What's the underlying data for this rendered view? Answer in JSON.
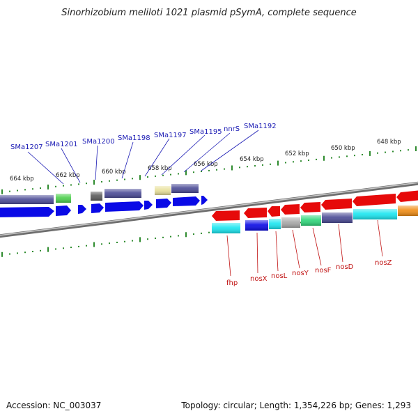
{
  "title": "Sinorhizobium meliloti 1021 plasmid pSymA, complete sequence",
  "footer": {
    "accession": "Accession: NC_003037",
    "summary": "Topology: circular; Length: 1,354,226 bp; Genes: 1,293"
  },
  "tick_labels": [
    "664 kbp",
    "662 kbp",
    "660 kbp",
    "658 kbp",
    "656 kbp",
    "654 kbp",
    "652 kbp",
    "650 kbp",
    "648 kbp"
  ],
  "top_gene_labels": [
    "SMa1207",
    "SMa1201",
    "SMa1200",
    "SMa1198",
    "SMa1197",
    "SMa1195",
    "nnrS",
    "SMa1192"
  ],
  "bottom_gene_labels": [
    "fhp",
    "nosX",
    "nosL",
    "nosY",
    "nosF",
    "nosD",
    "nosZ"
  ],
  "colors": {
    "backbone": "#8c8c8c",
    "tick": "#2e8b2e",
    "blue_label": "#1a1ab4",
    "red_label": "#c01010",
    "gene_forward": "#0a0ae6",
    "gene_reverse": "#e60a0a",
    "gene_cog_dark": "#4b4b96",
    "gene_cog_cyan": "#19e6f0",
    "gene_cog_green": "#2fd67a",
    "gene_cog_grey": "#a8a8a8",
    "gene_cog_yellow": "#e8e09a",
    "gene_cog_orange": "#f08c14",
    "gene_cog_lightgreen": "#4ccf4c"
  }
}
